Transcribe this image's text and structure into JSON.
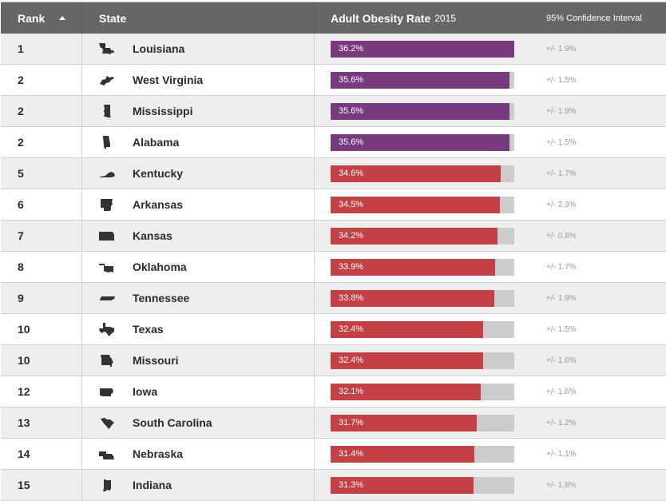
{
  "header": {
    "rank": "Rank",
    "state": "State",
    "rate_title": "Adult Obesity Rate",
    "rate_year": "2015",
    "ci": "95% Confidence Interval"
  },
  "colors": {
    "header_bg": "#666666",
    "top_tier": "#773a7f",
    "other_tier": "#c34045",
    "track": "#cccccc"
  },
  "rows": [
    {
      "rank": "1",
      "state": "Louisiana",
      "icon": "louisiana-shape-icon",
      "rate": "36.2%",
      "ci": "+/- 1.9%"
    },
    {
      "rank": "2",
      "state": "West Virginia",
      "icon": "west-virginia-shape-icon",
      "rate": "35.6%",
      "ci": "+/- 1.5%"
    },
    {
      "rank": "2",
      "state": "Mississippi",
      "icon": "mississippi-shape-icon",
      "rate": "35.6%",
      "ci": "+/- 1.9%"
    },
    {
      "rank": "2",
      "state": "Alabama",
      "icon": "alabama-shape-icon",
      "rate": "35.6%",
      "ci": "+/- 1.5%"
    },
    {
      "rank": "5",
      "state": "Kentucky",
      "icon": "kentucky-shape-icon",
      "rate": "34.6%",
      "ci": "+/- 1.7%"
    },
    {
      "rank": "6",
      "state": "Arkansas",
      "icon": "arkansas-shape-icon",
      "rate": "34.5%",
      "ci": "+/- 2.3%"
    },
    {
      "rank": "7",
      "state": "Kansas",
      "icon": "kansas-shape-icon",
      "rate": "34.2%",
      "ci": "+/- 0.8%"
    },
    {
      "rank": "8",
      "state": "Oklahoma",
      "icon": "oklahoma-shape-icon",
      "rate": "33.9%",
      "ci": "+/- 1.7%"
    },
    {
      "rank": "9",
      "state": "Tennessee",
      "icon": "tennessee-shape-icon",
      "rate": "33.8%",
      "ci": "+/- 1.9%"
    },
    {
      "rank": "10",
      "state": "Texas",
      "icon": "texas-shape-icon",
      "rate": "32.4%",
      "ci": "+/- 1.5%"
    },
    {
      "rank": "10",
      "state": "Missouri",
      "icon": "missouri-shape-icon",
      "rate": "32.4%",
      "ci": "+/- 1.6%"
    },
    {
      "rank": "12",
      "state": "Iowa",
      "icon": "iowa-shape-icon",
      "rate": "32.1%",
      "ci": "+/- 1.6%"
    },
    {
      "rank": "13",
      "state": "South Carolina",
      "icon": "south-carolina-shape-icon",
      "rate": "31.7%",
      "ci": "+/- 1.2%"
    },
    {
      "rank": "14",
      "state": "Nebraska",
      "icon": "nebraska-shape-icon",
      "rate": "31.4%",
      "ci": "+/- 1.1%"
    },
    {
      "rank": "15",
      "state": "Indiana",
      "icon": "indiana-shape-icon",
      "rate": "31.3%",
      "ci": "+/- 1.8%"
    }
  ],
  "chart_data": {
    "type": "bar",
    "orientation": "horizontal",
    "title": "Adult Obesity Rate 2015",
    "xlabel": "",
    "ylabel": "State",
    "categories": [
      "Louisiana",
      "West Virginia",
      "Mississippi",
      "Alabama",
      "Kentucky",
      "Arkansas",
      "Kansas",
      "Oklahoma",
      "Tennessee",
      "Texas",
      "Missouri",
      "Iowa",
      "South Carolina",
      "Nebraska",
      "Indiana"
    ],
    "values": [
      36.2,
      35.6,
      35.6,
      35.6,
      34.6,
      34.5,
      34.2,
      33.9,
      33.8,
      32.4,
      32.4,
      32.1,
      31.7,
      31.4,
      31.3
    ],
    "ranks": [
      1,
      2,
      2,
      2,
      5,
      6,
      7,
      8,
      9,
      10,
      10,
      12,
      13,
      14,
      15
    ],
    "confidence_interval": [
      1.9,
      1.5,
      1.9,
      1.5,
      1.7,
      2.3,
      0.8,
      1.7,
      1.9,
      1.5,
      1.6,
      1.6,
      1.2,
      1.1,
      1.8
    ],
    "ci_label": "95% Confidence Interval",
    "unit": "%",
    "series_colors": {
      "top_tier (>=35%)": "#773a7f",
      "other": "#c34045"
    },
    "grid": false,
    "legend": "none",
    "sort": "Rank ascending"
  }
}
